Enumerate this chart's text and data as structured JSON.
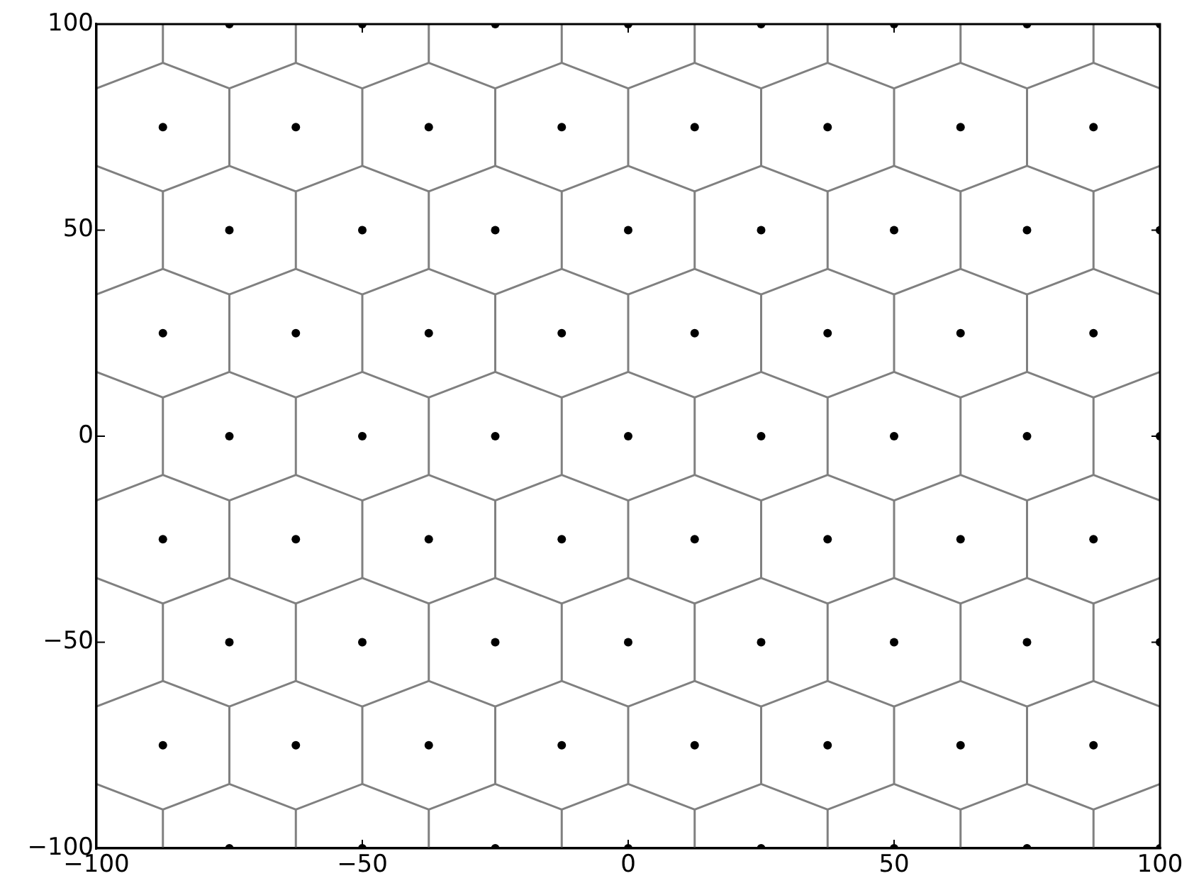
{
  "chart_data": {
    "type": "scatter",
    "marker": "circle",
    "xlim": [
      -100,
      100
    ],
    "ylim": [
      -100,
      100
    ],
    "xticks": [
      {
        "value": -100,
        "label": "−100"
      },
      {
        "value": -50,
        "label": "−50"
      },
      0,
      50,
      100
    ],
    "yticks": [
      {
        "value": -100,
        "label": "−100"
      },
      {
        "value": -50,
        "label": "−50"
      },
      0,
      50,
      100
    ],
    "grid": false,
    "legend": false,
    "x": [
      -100,
      -87.5,
      -75,
      -62.5,
      -50,
      -37.5,
      -25,
      -12.5,
      0,
      12.5,
      25,
      37.5,
      50,
      62.5,
      75,
      87.5,
      100
    ],
    "series": [
      {
        "type": "line",
        "marker": "none",
        "color": "#808080",
        "values": [
          84.4,
          90.6,
          84.4,
          90.6,
          84.4,
          90.6,
          84.4,
          90.6,
          84.4,
          90.6,
          84.4,
          90.6,
          84.4,
          90.6,
          84.4,
          90.6,
          84.4
        ]
      },
      {
        "type": "line",
        "marker": "none",
        "color": "#808080",
        "values": [
          65.6,
          59.4,
          65.6,
          59.4,
          65.6,
          59.4,
          65.6,
          59.4,
          65.6,
          59.4,
          65.6,
          59.4,
          65.6,
          59.4,
          65.6,
          59.4,
          65.6
        ]
      },
      {
        "type": "line",
        "marker": "none",
        "color": "#808080",
        "values": [
          34.4,
          40.6,
          34.4,
          40.6,
          34.4,
          40.6,
          34.4,
          40.6,
          34.4,
          40.6,
          34.4,
          40.6,
          34.4,
          40.6,
          34.4,
          40.6,
          34.4
        ]
      },
      {
        "type": "line",
        "marker": "none",
        "color": "#808080",
        "values": [
          15.6,
          9.4,
          15.6,
          9.4,
          15.6,
          9.4,
          15.6,
          9.4,
          15.6,
          9.4,
          15.6,
          9.4,
          15.6,
          9.4,
          15.6,
          9.4,
          15.6
        ]
      },
      {
        "type": "line",
        "marker": "none",
        "color": "#808080",
        "values": [
          -15.6,
          -9.4,
          -15.6,
          -9.4,
          -15.6,
          -9.4,
          -15.6,
          -9.4,
          -15.6,
          -9.4,
          -15.6,
          -9.4,
          -15.6,
          -9.4,
          -15.6,
          -9.4,
          -15.6
        ]
      },
      {
        "type": "line",
        "marker": "none",
        "color": "#808080",
        "values": [
          -34.4,
          -40.6,
          -34.4,
          -40.6,
          -34.4,
          -40.6,
          -34.4,
          -40.6,
          -34.4,
          -40.6,
          -34.4,
          -40.6,
          -34.4,
          -40.6,
          -34.4,
          -40.6,
          -34.4
        ]
      },
      {
        "type": "line",
        "marker": "none",
        "color": "#808080",
        "values": [
          -65.6,
          -59.4,
          -65.6,
          -59.4,
          -65.6,
          -59.4,
          -65.6,
          -59.4,
          -65.6,
          -59.4,
          -65.6,
          -59.4,
          -65.6,
          -59.4,
          -65.6,
          -59.4,
          -65.6
        ]
      },
      {
        "type": "line",
        "marker": "none",
        "color": "#808080",
        "values": [
          -84.4,
          -90.6,
          -84.4,
          -90.6,
          -84.4,
          -90.6,
          -84.4,
          -90.6,
          -84.4,
          -90.6,
          -84.4,
          -90.6,
          -84.4,
          -90.6,
          -84.4,
          -90.6,
          -84.4
        ]
      },
      {
        "type": "line",
        "marker": "none",
        "color": "#808080",
        "x": [
          -87.5,
          -87.5,
          null,
          -62.5,
          -62.5,
          null,
          -37.5,
          -37.5,
          null,
          -12.5,
          -12.5,
          null,
          12.5,
          12.5,
          null,
          37.5,
          37.5,
          null,
          62.5,
          62.5,
          null,
          87.5,
          87.5,
          null
        ],
        "values": [
          90.6,
          100,
          null,
          90.6,
          100,
          null,
          90.6,
          100,
          null,
          90.6,
          100,
          null,
          90.6,
          100,
          null,
          90.6,
          100,
          null,
          90.6,
          100,
          null,
          90.6,
          100,
          null
        ]
      },
      {
        "type": "line",
        "marker": "none",
        "color": "#808080",
        "x": [
          -75,
          -75,
          null,
          -50,
          -50,
          null,
          -25,
          -25,
          null,
          0,
          0,
          null,
          25,
          25,
          null,
          50,
          50,
          null,
          75,
          75,
          null
        ],
        "values": [
          65.6,
          84.4,
          null,
          65.6,
          84.4,
          null,
          65.6,
          84.4,
          null,
          65.6,
          84.4,
          null,
          65.6,
          84.4,
          null,
          65.6,
          84.4,
          null,
          65.6,
          84.4,
          null
        ]
      },
      {
        "type": "line",
        "marker": "none",
        "color": "#808080",
        "x": [
          -87.5,
          -87.5,
          null,
          -62.5,
          -62.5,
          null,
          -37.5,
          -37.5,
          null,
          -12.5,
          -12.5,
          null,
          12.5,
          12.5,
          null,
          37.5,
          37.5,
          null,
          62.5,
          62.5,
          null,
          87.5,
          87.5,
          null
        ],
        "values": [
          40.6,
          59.4,
          null,
          40.6,
          59.4,
          null,
          40.6,
          59.4,
          null,
          40.6,
          59.4,
          null,
          40.6,
          59.4,
          null,
          40.6,
          59.4,
          null,
          40.6,
          59.4,
          null,
          40.6,
          59.4,
          null
        ]
      },
      {
        "type": "line",
        "marker": "none",
        "color": "#808080",
        "x": [
          -75,
          -75,
          null,
          -50,
          -50,
          null,
          -25,
          -25,
          null,
          0,
          0,
          null,
          25,
          25,
          null,
          50,
          50,
          null,
          75,
          75,
          null
        ],
        "values": [
          15.6,
          34.4,
          null,
          15.6,
          34.4,
          null,
          15.6,
          34.4,
          null,
          15.6,
          34.4,
          null,
          15.6,
          34.4,
          null,
          15.6,
          34.4,
          null,
          15.6,
          34.4,
          null
        ]
      },
      {
        "type": "line",
        "marker": "none",
        "color": "#808080",
        "x": [
          -87.5,
          -87.5,
          null,
          -62.5,
          -62.5,
          null,
          -37.5,
          -37.5,
          null,
          -12.5,
          -12.5,
          null,
          12.5,
          12.5,
          null,
          37.5,
          37.5,
          null,
          62.5,
          62.5,
          null,
          87.5,
          87.5,
          null
        ],
        "values": [
          -9.4,
          9.4,
          null,
          -9.4,
          9.4,
          null,
          -9.4,
          9.4,
          null,
          -9.4,
          9.4,
          null,
          -9.4,
          9.4,
          null,
          -9.4,
          9.4,
          null,
          -9.4,
          9.4,
          null,
          -9.4,
          9.4,
          null
        ]
      },
      {
        "type": "line",
        "marker": "none",
        "color": "#808080",
        "x": [
          -75,
          -75,
          null,
          -50,
          -50,
          null,
          -25,
          -25,
          null,
          0,
          0,
          null,
          25,
          25,
          null,
          50,
          50,
          null,
          75,
          75,
          null
        ],
        "values": [
          -34.4,
          -15.6,
          null,
          -34.4,
          -15.6,
          null,
          -34.4,
          -15.6,
          null,
          -34.4,
          -15.6,
          null,
          -34.4,
          -15.6,
          null,
          -34.4,
          -15.6,
          null,
          -34.4,
          -15.6,
          null
        ]
      },
      {
        "type": "line",
        "marker": "none",
        "color": "#808080",
        "x": [
          -87.5,
          -87.5,
          null,
          -62.5,
          -62.5,
          null,
          -37.5,
          -37.5,
          null,
          -12.5,
          -12.5,
          null,
          12.5,
          12.5,
          null,
          37.5,
          37.5,
          null,
          62.5,
          62.5,
          null,
          87.5,
          87.5,
          null
        ],
        "values": [
          -59.4,
          -40.6,
          null,
          -59.4,
          -40.6,
          null,
          -59.4,
          -40.6,
          null,
          -59.4,
          -40.6,
          null,
          -59.4,
          -40.6,
          null,
          -59.4,
          -40.6,
          null,
          -59.4,
          -40.6,
          null,
          -59.4,
          -40.6,
          null
        ]
      },
      {
        "type": "line",
        "marker": "none",
        "color": "#808080",
        "x": [
          -75,
          -75,
          null,
          -50,
          -50,
          null,
          -25,
          -25,
          null,
          0,
          0,
          null,
          25,
          25,
          null,
          50,
          50,
          null,
          75,
          75,
          null
        ],
        "values": [
          -84.4,
          -65.6,
          null,
          -84.4,
          -65.6,
          null,
          -84.4,
          -65.6,
          null,
          -84.4,
          -65.6,
          null,
          -84.4,
          -65.6,
          null,
          -84.4,
          -65.6,
          null,
          -84.4,
          -65.6,
          null
        ]
      },
      {
        "type": "line",
        "marker": "none",
        "color": "#808080",
        "x": [
          -87.5,
          -87.5,
          null,
          -62.5,
          -62.5,
          null,
          -37.5,
          -37.5,
          null,
          -12.5,
          -12.5,
          null,
          12.5,
          12.5,
          null,
          37.5,
          37.5,
          null,
          62.5,
          62.5,
          null,
          87.5,
          87.5,
          null
        ],
        "values": [
          -100,
          -90.6,
          null,
          -100,
          -90.6,
          null,
          -100,
          -90.6,
          null,
          -100,
          -90.6,
          null,
          -100,
          -90.6,
          null,
          -100,
          -90.6,
          null,
          -100,
          -90.6,
          null,
          -100,
          -90.6,
          null
        ]
      },
      {
        "color": "#000000",
        "x": [
          -75,
          -50,
          -25,
          0,
          25,
          50,
          75,
          100,
          -87.5,
          -62.5,
          -37.5,
          -12.5,
          12.5,
          37.5,
          62.5,
          87.5,
          -75,
          -50,
          -25,
          0,
          25,
          50,
          75,
          100,
          -87.5,
          -62.5,
          -37.5,
          -12.5,
          12.5,
          37.5,
          62.5,
          87.5,
          -75,
          -50,
          -25,
          0,
          25,
          50,
          75,
          100,
          -87.5,
          -62.5,
          -37.5,
          -12.5,
          12.5,
          37.5,
          62.5,
          87.5,
          -75,
          -50,
          -25,
          0,
          25,
          50,
          75,
          100,
          -87.5,
          -62.5,
          -37.5,
          -12.5,
          12.5,
          37.5,
          62.5,
          87.5,
          -75,
          -50,
          -25,
          0,
          25,
          50,
          75,
          100
        ],
        "values": [
          100,
          100,
          100,
          100,
          100,
          100,
          100,
          100,
          75,
          75,
          75,
          75,
          75,
          75,
          75,
          75,
          50,
          50,
          50,
          50,
          50,
          50,
          50,
          50,
          25,
          25,
          25,
          25,
          25,
          25,
          25,
          25,
          0,
          0,
          0,
          0,
          0,
          0,
          0,
          0,
          -25,
          -25,
          -25,
          -25,
          -25,
          -25,
          -25,
          -25,
          -50,
          -50,
          -50,
          -50,
          -50,
          -50,
          -50,
          -50,
          -75,
          -75,
          -75,
          -75,
          -75,
          -75,
          -75,
          -75,
          -100,
          -100,
          -100,
          -100,
          -100,
          -100,
          -100,
          -100
        ]
      }
    ]
  }
}
